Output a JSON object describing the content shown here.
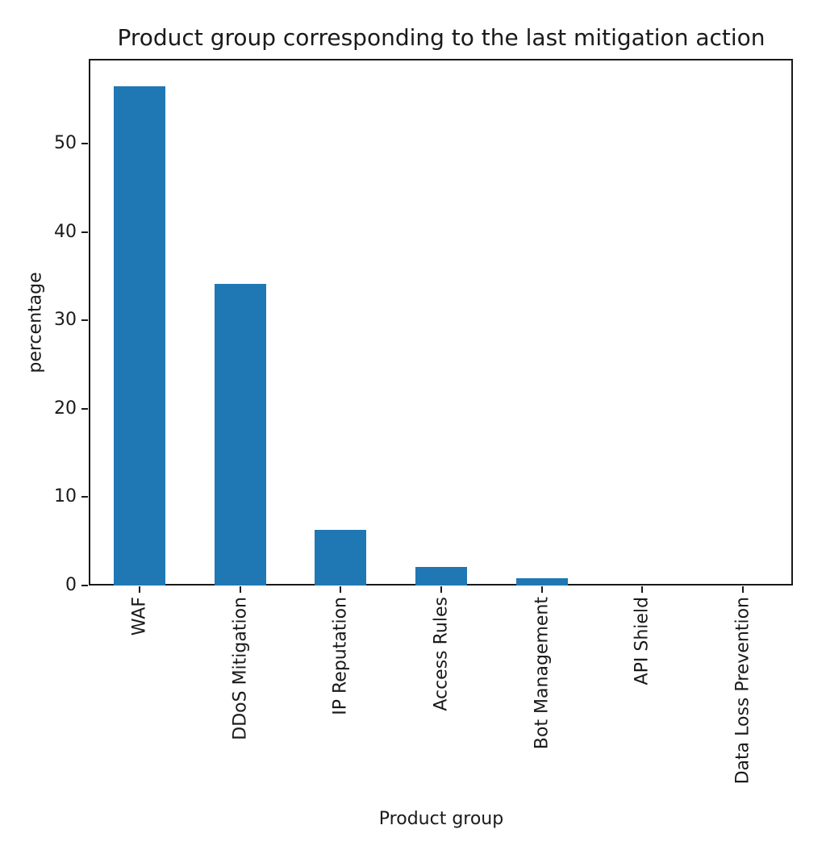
{
  "chart_data": {
    "type": "bar",
    "title": "Product group corresponding to the last mitigation action",
    "xlabel": "Product group",
    "ylabel": "percentage",
    "categories": [
      "WAF",
      "DDoS Mitigation",
      "IP Reputation",
      "Access Rules",
      "Bot Management",
      "API Shield",
      "Data Loss Prevention"
    ],
    "values": [
      56.5,
      34.1,
      6.3,
      2.1,
      0.85,
      0.0,
      0.0
    ],
    "yticks": [
      0,
      10,
      20,
      30,
      40,
      50
    ],
    "ylim": [
      0,
      59.5
    ],
    "grid": "off",
    "legend": "none",
    "bar_color": "#1f77b4",
    "axis_color": "#1a1a1a"
  }
}
